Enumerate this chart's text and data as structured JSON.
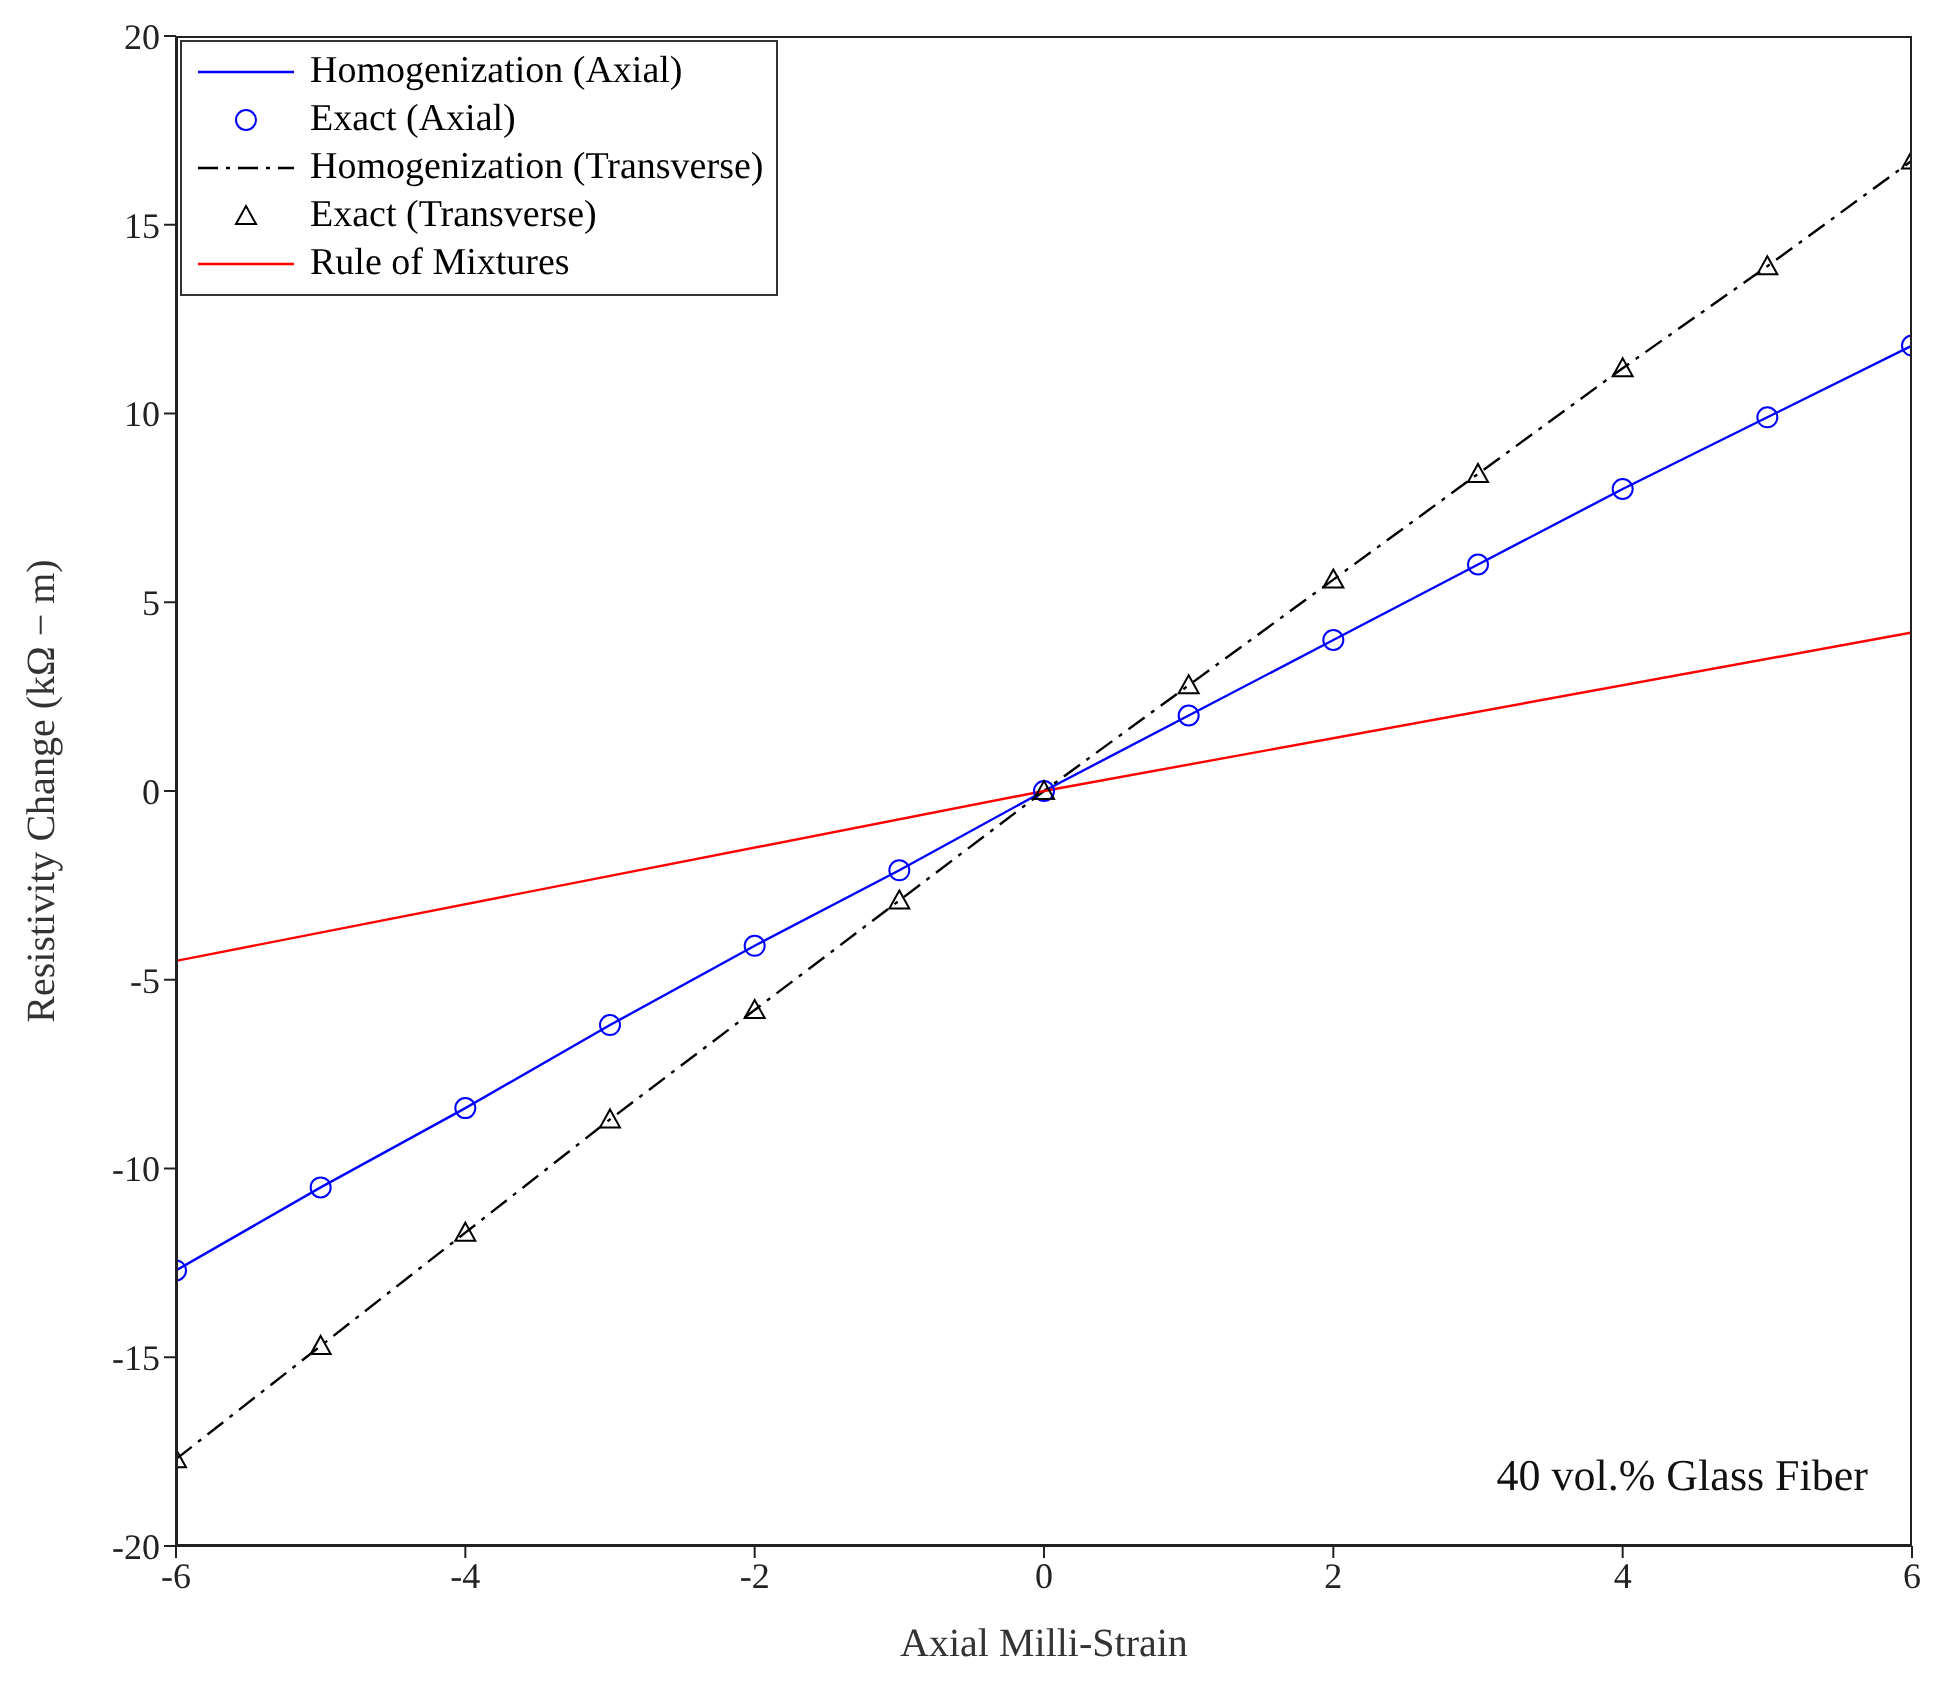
{
  "chart_data": {
    "type": "line",
    "xlabel": "Axial Milli-Strain",
    "ylabel": "Resistivity Change (kΩ − m)",
    "xlim": [
      -6,
      6
    ],
    "xticks": [
      -6,
      -4,
      -2,
      0,
      2,
      4,
      6
    ],
    "ylim": [
      -20,
      20
    ],
    "yticks": [
      -20,
      -15,
      -10,
      -5,
      0,
      5,
      10,
      15,
      20
    ],
    "grid": false,
    "legend": "top left",
    "annotations": [
      "40 vol.% Glass Fiber"
    ],
    "series": [
      {
        "name": "Homogenization (Axial)",
        "color": "#0000ff",
        "line_style": "solid",
        "marker": "none",
        "x": [
          -6,
          -5,
          -4,
          -3,
          -2,
          -1,
          0,
          1,
          2,
          3,
          4,
          5,
          6
        ],
        "values": [
          -12.7,
          -10.5,
          -8.4,
          -6.2,
          -4.1,
          -2.1,
          0,
          2.0,
          4.0,
          6.0,
          8.0,
          9.9,
          11.8
        ]
      },
      {
        "name": "Exact (Axial)",
        "type": "scatter",
        "color": "#0000ff",
        "marker": "circle",
        "x": [
          -6,
          -5,
          -4,
          -3,
          -2,
          -1,
          0,
          1,
          2,
          3,
          4,
          5,
          6
        ],
        "values": [
          -12.7,
          -10.5,
          -8.4,
          -6.2,
          -4.1,
          -2.1,
          0,
          2.0,
          4.0,
          6.0,
          8.0,
          9.9,
          11.8
        ]
      },
      {
        "name": "Homogenization (Transverse)",
        "color": "#000000",
        "line_style": "dashdot",
        "marker": "none",
        "x": [
          -6,
          -5,
          -4,
          -3,
          -2,
          -1,
          0,
          1,
          2,
          3,
          4,
          5,
          6
        ],
        "values": [
          -17.7,
          -14.7,
          -11.7,
          -8.7,
          -5.8,
          -2.9,
          0,
          2.8,
          5.6,
          8.4,
          11.2,
          13.9,
          16.7
        ]
      },
      {
        "name": "Exact (Transverse)",
        "type": "scatter",
        "color": "#000000",
        "marker": "triangle",
        "x": [
          -6,
          -5,
          -4,
          -3,
          -2,
          -1,
          0,
          1,
          2,
          3,
          4,
          5,
          6
        ],
        "values": [
          -17.7,
          -14.7,
          -11.7,
          -8.7,
          -5.8,
          -2.9,
          0,
          2.8,
          5.6,
          8.4,
          11.2,
          13.9,
          16.7
        ]
      },
      {
        "name": "Rule of Mixtures",
        "color": "#ff0000",
        "line_style": "solid",
        "marker": "none",
        "x": [
          -6,
          0,
          6
        ],
        "values": [
          -4.5,
          0,
          4.2
        ]
      }
    ]
  }
}
